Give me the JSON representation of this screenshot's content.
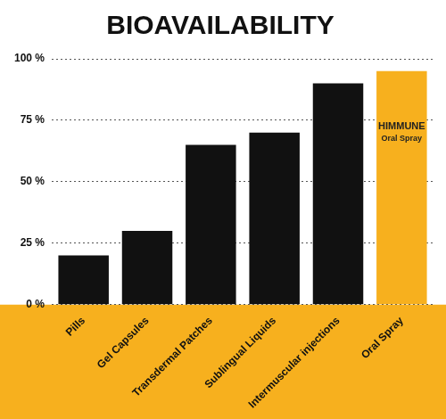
{
  "chart_data": {
    "type": "bar",
    "title": "BIOAVAILABILITY",
    "categories": [
      "Pills",
      "Gel Capsules",
      "Transdermal Patches",
      "Sublingual Liquids",
      "Intermuscular injections",
      "Oral Spray"
    ],
    "values": [
      20,
      30,
      65,
      70,
      90,
      95
    ],
    "colors": [
      "#111111",
      "#111111",
      "#111111",
      "#111111",
      "#111111",
      "#f7b01e"
    ],
    "ylim": [
      0,
      100
    ],
    "yticks": [
      {
        "value": 0,
        "label": "0 %"
      },
      {
        "value": 25,
        "label": "25 %"
      },
      {
        "value": 50,
        "label": "50 %"
      },
      {
        "value": 75,
        "label": "75 %"
      },
      {
        "value": 100,
        "label": "100 %"
      }
    ],
    "grid": true,
    "annotations": [
      {
        "category": "Oral Spray",
        "text": "HIMMUNE Oral Spray"
      }
    ]
  }
}
